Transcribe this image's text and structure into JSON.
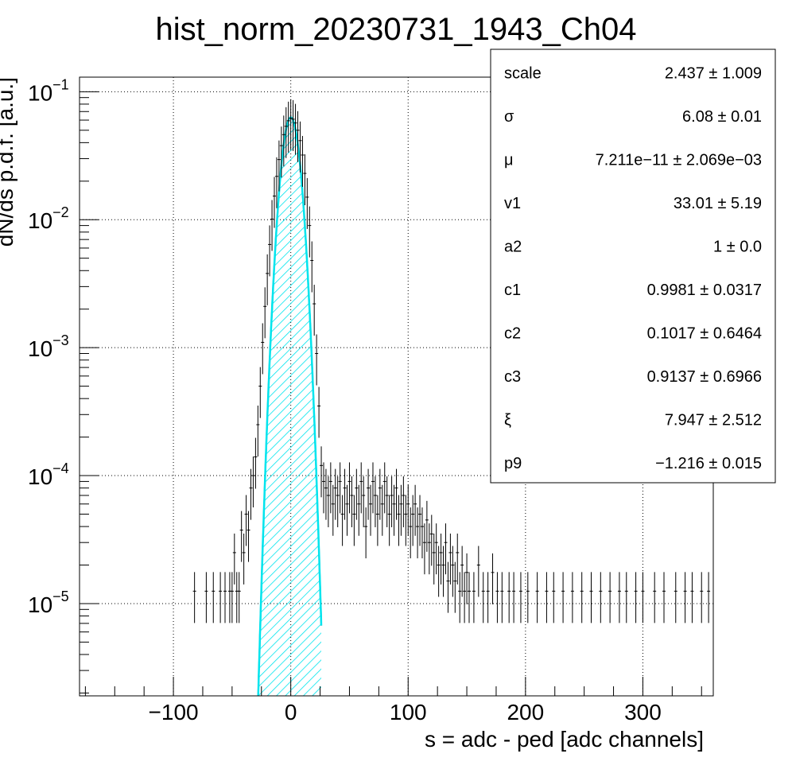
{
  "title": "hist_norm_20230731_1943_Ch04",
  "chart_data": {
    "type": "histogram",
    "title": "hist_norm_20230731_1943_Ch04",
    "xlabel": "s = adc - ped [adc channels]",
    "ylabel": "dN/ds p.d.f. [a.u.]",
    "x_range": [
      -180,
      360
    ],
    "y_range": [
      1.9e-06,
      0.13
    ],
    "y_scale": "log",
    "grid": true,
    "x_ticks": [
      {
        "value": -100,
        "label": "−100"
      },
      {
        "value": 0,
        "label": "0"
      },
      {
        "value": 100,
        "label": "100"
      },
      {
        "value": 200,
        "label": "200"
      },
      {
        "value": 300,
        "label": "300"
      }
    ],
    "y_ticks": [
      {
        "value": 0.1,
        "base": "10",
        "exp": "−1"
      },
      {
        "value": 0.01,
        "base": "10",
        "exp": "−2"
      },
      {
        "value": 0.001,
        "base": "10",
        "exp": "−3"
      },
      {
        "value": 0.0001,
        "base": "10",
        "exp": "−4"
      },
      {
        "value": 1e-05,
        "base": "10",
        "exp": "−5"
      }
    ],
    "histogram": {
      "color": "#000000",
      "points": [
        [
          -82,
          1.25e-05
        ],
        [
          -72,
          1.25e-05
        ],
        [
          -66,
          1.25e-05
        ],
        [
          -60,
          1.25e-05
        ],
        [
          -56,
          1.25e-05
        ],
        [
          -52,
          1.25e-05
        ],
        [
          -50,
          1.25e-05
        ],
        [
          -48,
          2.5e-05
        ],
        [
          -46,
          1.25e-05
        ],
        [
          -44,
          1.25e-05
        ],
        [
          -42,
          3.75e-05
        ],
        [
          -40,
          2.5e-05
        ],
        [
          -38,
          5e-05
        ],
        [
          -36,
          3.75e-05
        ],
        [
          -34,
          8e-05
        ],
        [
          -32,
          0.0001
        ],
        [
          -30,
          0.00014
        ],
        [
          -28,
          0.00025
        ],
        [
          -26,
          0.0005
        ],
        [
          -24,
          0.0011
        ],
        [
          -22,
          0.0021
        ],
        [
          -20,
          0.0038
        ],
        [
          -18,
          0.0064
        ],
        [
          -16,
          0.0101
        ],
        [
          -14,
          0.0153
        ],
        [
          -12,
          0.0218
        ],
        [
          -10,
          0.0295
        ],
        [
          -8,
          0.0379
        ],
        [
          -6,
          0.0462
        ],
        [
          -4,
          0.0537
        ],
        [
          -2,
          0.0593
        ],
        [
          0,
          0.062
        ],
        [
          2,
          0.061
        ],
        [
          4,
          0.057
        ],
        [
          6,
          0.05
        ],
        [
          8,
          0.0415
        ],
        [
          10,
          0.032
        ],
        [
          12,
          0.023
        ],
        [
          14,
          0.015
        ],
        [
          16,
          0.009
        ],
        [
          18,
          0.0048
        ],
        [
          20,
          0.0022
        ],
        [
          22,
          0.0009
        ],
        [
          24,
          0.00035
        ],
        [
          26,
          0.00012
        ],
        [
          28,
          9e-05
        ],
        [
          30,
          8e-05
        ],
        [
          32,
          7e-05
        ],
        [
          34,
          9e-05
        ],
        [
          36,
          6e-05
        ],
        [
          38,
          8e-05
        ],
        [
          40,
          7e-05
        ],
        [
          42,
          9e-05
        ],
        [
          44,
          5e-05
        ],
        [
          46,
          8e-05
        ],
        [
          48,
          6e-05
        ],
        [
          50,
          9e-05
        ],
        [
          52,
          7e-05
        ],
        [
          54,
          5e-05
        ],
        [
          56,
          8e-05
        ],
        [
          58,
          6e-05
        ],
        [
          60,
          9e-05
        ],
        [
          62,
          7e-05
        ],
        [
          64,
          4e-05
        ],
        [
          66,
          8e-05
        ],
        [
          68,
          6e-05
        ],
        [
          70,
          9e-05
        ],
        [
          72,
          7e-05
        ],
        [
          74,
          5e-05
        ],
        [
          76,
          8e-05
        ],
        [
          78,
          6e-05
        ],
        [
          80,
          9e-05
        ],
        [
          82,
          7e-05
        ],
        [
          84,
          5e-05
        ],
        [
          86,
          7e-05
        ],
        [
          88,
          6e-05
        ],
        [
          90,
          8e-05
        ],
        [
          92,
          5e-05
        ],
        [
          94,
          6e-05
        ],
        [
          96,
          7e-05
        ],
        [
          98,
          5e-05
        ],
        [
          100,
          6e-05
        ],
        [
          102,
          4e-05
        ],
        [
          104,
          5e-05
        ],
        [
          106,
          6e-05
        ],
        [
          108,
          4e-05
        ],
        [
          110,
          5e-05
        ],
        [
          112,
          4e-05
        ],
        [
          114,
          3e-05
        ],
        [
          116,
          4.5e-05
        ],
        [
          118,
          3e-05
        ],
        [
          120,
          3.5e-05
        ],
        [
          122,
          2.5e-05
        ],
        [
          124,
          3e-05
        ],
        [
          126,
          2e-05
        ],
        [
          128,
          2.5e-05
        ],
        [
          130,
          2e-05
        ],
        [
          132,
          3e-05
        ],
        [
          134,
          1.5e-05
        ],
        [
          136,
          2.5e-05
        ],
        [
          138,
          2e-05
        ],
        [
          140,
          1.5e-05
        ],
        [
          142,
          2.5e-05
        ],
        [
          144,
          1.25e-05
        ],
        [
          146,
          2e-05
        ],
        [
          148,
          1.25e-05
        ],
        [
          150,
          1.75e-05
        ],
        [
          152,
          1.25e-05
        ],
        [
          156,
          1.25e-05
        ],
        [
          160,
          2e-05
        ],
        [
          164,
          1.25e-05
        ],
        [
          168,
          1.25e-05
        ],
        [
          172,
          1.75e-05
        ],
        [
          176,
          1.25e-05
        ],
        [
          180,
          1.25e-05
        ],
        [
          186,
          1.25e-05
        ],
        [
          190,
          1.25e-05
        ],
        [
          196,
          1.25e-05
        ],
        [
          202,
          1.25e-05
        ],
        [
          210,
          1.25e-05
        ],
        [
          218,
          1.25e-05
        ],
        [
          224,
          1.25e-05
        ],
        [
          232,
          1.25e-05
        ],
        [
          240,
          1.25e-05
        ],
        [
          248,
          1.25e-05
        ],
        [
          256,
          1.25e-05
        ],
        [
          264,
          1.25e-05
        ],
        [
          272,
          1.25e-05
        ],
        [
          280,
          1.25e-05
        ],
        [
          286,
          1.25e-05
        ],
        [
          294,
          1.25e-05
        ],
        [
          300,
          1.25e-05
        ],
        [
          310,
          1.25e-05
        ],
        [
          318,
          1.25e-05
        ],
        [
          328,
          1.25e-05
        ],
        [
          336,
          1.25e-05
        ],
        [
          342,
          1.25e-05
        ],
        [
          350,
          1.25e-05
        ],
        [
          356,
          1.25e-05
        ]
      ]
    },
    "fit": {
      "color": "#00e5ee",
      "line_color": "#d62728",
      "fill": "hatched",
      "center": 0,
      "sigma": 6.08,
      "peak": 0.063,
      "x_min": -30,
      "x_max": 26
    },
    "stats": [
      {
        "label": "scale",
        "value": "2.437 ± 1.009"
      },
      {
        "label": "σ",
        "value": "6.08 ± 0.01"
      },
      {
        "label": "μ",
        "value": "7.211e−11 ± 2.069e−03"
      },
      {
        "label": "v1",
        "value": "33.01 ± 5.19"
      },
      {
        "label": "a2",
        "value": "1 ± 0.0"
      },
      {
        "label": "c1",
        "value": "0.9981 ± 0.0317"
      },
      {
        "label": "c2",
        "value": "0.1017 ± 0.6464"
      },
      {
        "label": "c3",
        "value": "0.9137 ± 0.6966"
      },
      {
        "label": "ξ",
        "value": "7.947 ± 2.512"
      },
      {
        "label": "p9",
        "value": "−1.216 ± 0.015"
      }
    ]
  }
}
